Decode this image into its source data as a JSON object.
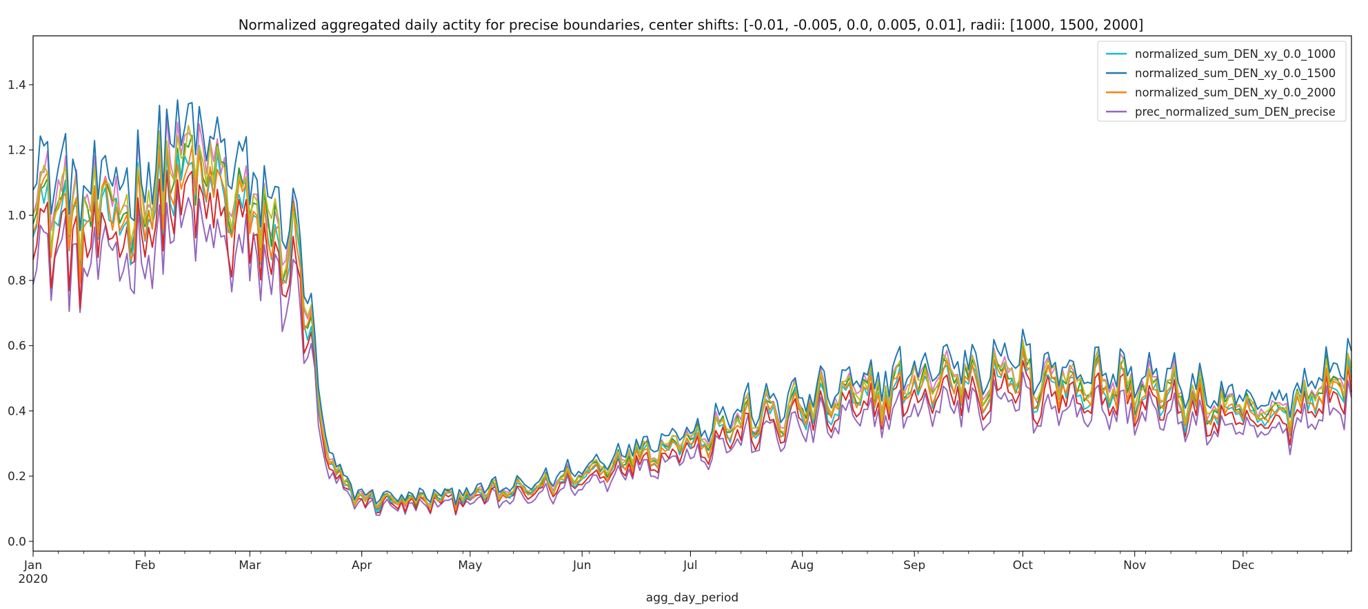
{
  "chart_data": {
    "type": "line",
    "title": "Normalized aggregated daily actity for precise boundaries, center shifts: [-0.01, -0.005, 0.0, 0.005, 0.01], radii: [1000, 1500, 2000]",
    "xlabel": "agg_day_period",
    "ylabel": "",
    "x_range": [
      "2020-01-01",
      "2020-12-31"
    ],
    "ylim": [
      -0.03,
      1.55
    ],
    "y_ticks": [
      "0.0",
      "0.2",
      "0.4",
      "0.6",
      "0.8",
      "1.0",
      "1.2",
      "1.4"
    ],
    "x_ticks": [
      {
        "date": "2020-01-01",
        "label": "Jan",
        "sublabel": "2020"
      },
      {
        "date": "2020-02-01",
        "label": "Feb"
      },
      {
        "date": "2020-03-01",
        "label": "Mar"
      },
      {
        "date": "2020-04-01",
        "label": "Apr"
      },
      {
        "date": "2020-05-01",
        "label": "May"
      },
      {
        "date": "2020-06-01",
        "label": "Jun"
      },
      {
        "date": "2020-07-01",
        "label": "Jul"
      },
      {
        "date": "2020-08-01",
        "label": "Aug"
      },
      {
        "date": "2020-09-01",
        "label": "Sep"
      },
      {
        "date": "2020-10-01",
        "label": "Oct"
      },
      {
        "date": "2020-11-01",
        "label": "Nov"
      },
      {
        "date": "2020-12-01",
        "label": "Dec"
      }
    ],
    "grid": false,
    "legend_position": "top-right",
    "legend": [
      {
        "label": "normalized_sum_DEN_xy_0.0_1000",
        "color": "#17becf"
      },
      {
        "label": "normalized_sum_DEN_xy_0.0_1500",
        "color": "#1f77b4"
      },
      {
        "label": "normalized_sum_DEN_xy_0.0_2000",
        "color": "#ff7f0e"
      },
      {
        "label": "prec_normalized_sum_DEN_precise",
        "color": "#9467bd"
      }
    ],
    "series_colors": [
      "#9467bd",
      "#d62728",
      "#e377c2",
      "#2ca02c",
      "#17becf",
      "#ff7f0e",
      "#bcbd22",
      "#1f77b4"
    ],
    "trend": [
      {
        "date": "2020-01-01",
        "level": 1.05
      },
      {
        "date": "2020-01-15",
        "level": 0.95
      },
      {
        "date": "2020-02-01",
        "level": 1.02
      },
      {
        "date": "2020-02-10",
        "level": 1.12
      },
      {
        "date": "2020-02-20",
        "level": 1.08
      },
      {
        "date": "2020-03-01",
        "level": 0.98
      },
      {
        "date": "2020-03-10",
        "level": 0.9
      },
      {
        "date": "2020-03-15",
        "level": 0.85
      },
      {
        "date": "2020-03-18",
        "level": 0.6
      },
      {
        "date": "2020-03-21",
        "level": 0.32
      },
      {
        "date": "2020-03-25",
        "level": 0.19
      },
      {
        "date": "2020-04-01",
        "level": 0.13
      },
      {
        "date": "2020-04-15",
        "level": 0.12
      },
      {
        "date": "2020-05-01",
        "level": 0.14
      },
      {
        "date": "2020-05-15",
        "level": 0.15
      },
      {
        "date": "2020-06-01",
        "level": 0.2
      },
      {
        "date": "2020-06-15",
        "level": 0.26
      },
      {
        "date": "2020-07-01",
        "level": 0.31
      },
      {
        "date": "2020-07-15",
        "level": 0.36
      },
      {
        "date": "2020-08-01",
        "level": 0.4
      },
      {
        "date": "2020-08-15",
        "level": 0.43
      },
      {
        "date": "2020-09-01",
        "level": 0.47
      },
      {
        "date": "2020-09-15",
        "level": 0.5
      },
      {
        "date": "2020-10-01",
        "level": 0.49
      },
      {
        "date": "2020-10-15",
        "level": 0.48
      },
      {
        "date": "2020-11-01",
        "level": 0.46
      },
      {
        "date": "2020-11-15",
        "level": 0.43
      },
      {
        "date": "2020-12-01",
        "level": 0.38
      },
      {
        "date": "2020-12-10",
        "level": 0.37
      },
      {
        "date": "2020-12-20",
        "level": 0.45
      },
      {
        "date": "2020-12-31",
        "level": 0.5
      }
    ]
  }
}
